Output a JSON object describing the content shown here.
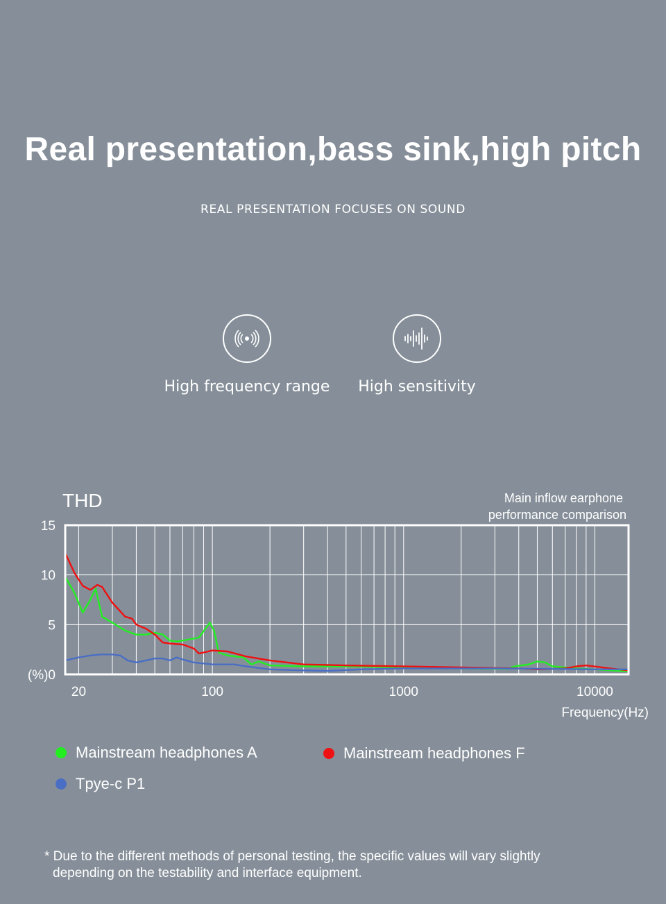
{
  "page": {
    "headline": "Real presentation,bass sink,high pitch",
    "subheadline": "REAL PRESENTATION FOCUSES ON SOUND",
    "features": [
      {
        "icon": "sound-wave-rings-icon",
        "label": "High frequency range"
      },
      {
        "icon": "audio-waveform-icon",
        "label": "High sensitivity"
      }
    ],
    "footnote_line1": "* Due to the different methods of personal testing, the specific values will vary slightly",
    "footnote_line2": "depending on the testability and interface equipment."
  },
  "chart_data": {
    "type": "line",
    "title": "THD",
    "subtitle_line1": "Main inflow earphone",
    "subtitle_line2": "performance comparison",
    "xlabel": "Frequency(Hz)",
    "ylabel": "(%)",
    "x_scale": "log",
    "xlim": [
      17,
      15000
    ],
    "ylim": [
      0,
      15
    ],
    "x_ticks": [
      {
        "value": 20,
        "label": "20"
      },
      {
        "value": 100,
        "label": "100"
      },
      {
        "value": 1000,
        "label": "1000"
      },
      {
        "value": 10000,
        "label": "10000"
      }
    ],
    "y_ticks": [
      {
        "value": 0,
        "label": "(%)0"
      },
      {
        "value": 5,
        "label": "5"
      },
      {
        "value": 10,
        "label": "10"
      },
      {
        "value": 15,
        "label": "15"
      }
    ],
    "x_gridlines": [
      20,
      30,
      40,
      50,
      60,
      70,
      80,
      90,
      100,
      200,
      300,
      400,
      500,
      600,
      700,
      800,
      900,
      1000,
      2000,
      3000,
      4000,
      5000,
      6000,
      7000,
      8000,
      9000,
      10000
    ],
    "grid": true,
    "legend_position": "bottom",
    "colors": {
      "grid": "#ffffff",
      "text": "#ffffff"
    },
    "series": [
      {
        "name": "Mainstream headphones A",
        "color": "#22ee22",
        "points": [
          [
            17,
            9.8
          ],
          [
            19,
            8.2
          ],
          [
            21,
            6.2
          ],
          [
            23,
            7.5
          ],
          [
            24.5,
            8.6
          ],
          [
            26.5,
            5.8
          ],
          [
            30,
            5.2
          ],
          [
            35,
            4.4
          ],
          [
            40,
            4.0
          ],
          [
            45,
            4.0
          ],
          [
            50,
            4.2
          ],
          [
            55,
            4.0
          ],
          [
            60,
            3.4
          ],
          [
            65,
            3.3
          ],
          [
            75,
            3.5
          ],
          [
            85,
            3.7
          ],
          [
            92,
            4.6
          ],
          [
            97,
            5.2
          ],
          [
            102,
            4.4
          ],
          [
            108,
            2.2
          ],
          [
            120,
            1.9
          ],
          [
            145,
            1.7
          ],
          [
            160,
            1.0
          ],
          [
            175,
            1.3
          ],
          [
            200,
            0.9
          ],
          [
            300,
            0.8
          ],
          [
            500,
            0.8
          ],
          [
            1000,
            0.7
          ],
          [
            2000,
            0.6
          ],
          [
            3500,
            0.55
          ],
          [
            3800,
            0.8
          ],
          [
            4500,
            1.0
          ],
          [
            5000,
            1.3
          ],
          [
            5500,
            1.2
          ],
          [
            6000,
            0.8
          ],
          [
            8000,
            0.6
          ],
          [
            10000,
            0.5
          ],
          [
            15000,
            0.3
          ]
        ]
      },
      {
        "name": "Mainstream headphones F",
        "color": "#ee1111",
        "points": [
          [
            17,
            12.2
          ],
          [
            19,
            10.2
          ],
          [
            21,
            8.9
          ],
          [
            23,
            8.5
          ],
          [
            25,
            9.0
          ],
          [
            26.5,
            8.8
          ],
          [
            30,
            7.2
          ],
          [
            35,
            5.8
          ],
          [
            38,
            5.6
          ],
          [
            40,
            5.0
          ],
          [
            45,
            4.6
          ],
          [
            50,
            4.0
          ],
          [
            55,
            3.2
          ],
          [
            60,
            3.1
          ],
          [
            70,
            3.0
          ],
          [
            80,
            2.6
          ],
          [
            85,
            2.1
          ],
          [
            90,
            2.2
          ],
          [
            100,
            2.4
          ],
          [
            120,
            2.3
          ],
          [
            150,
            1.8
          ],
          [
            200,
            1.4
          ],
          [
            300,
            1.0
          ],
          [
            500,
            0.9
          ],
          [
            1000,
            0.8
          ],
          [
            2000,
            0.7
          ],
          [
            4000,
            0.6
          ],
          [
            5000,
            0.5
          ],
          [
            7000,
            0.6
          ],
          [
            8000,
            0.8
          ],
          [
            9000,
            0.9
          ],
          [
            12000,
            0.6
          ],
          [
            15000,
            0.4
          ]
        ]
      },
      {
        "name": "Tpye-c P1",
        "color": "#4a6ec4",
        "points": [
          [
            17,
            1.4
          ],
          [
            20,
            1.7
          ],
          [
            23,
            1.9
          ],
          [
            26,
            2.0
          ],
          [
            30,
            2.0
          ],
          [
            33,
            1.9
          ],
          [
            36,
            1.4
          ],
          [
            40,
            1.2
          ],
          [
            45,
            1.4
          ],
          [
            50,
            1.6
          ],
          [
            55,
            1.6
          ],
          [
            60,
            1.4
          ],
          [
            65,
            1.7
          ],
          [
            70,
            1.5
          ],
          [
            80,
            1.2
          ],
          [
            100,
            1.0
          ],
          [
            130,
            1.0
          ],
          [
            150,
            0.8
          ],
          [
            200,
            0.5
          ],
          [
            300,
            0.4
          ],
          [
            400,
            0.35
          ],
          [
            600,
            0.5
          ],
          [
            1000,
            0.6
          ],
          [
            3000,
            0.6
          ],
          [
            6000,
            0.55
          ],
          [
            10000,
            0.5
          ],
          [
            15000,
            0.5
          ]
        ]
      }
    ]
  }
}
